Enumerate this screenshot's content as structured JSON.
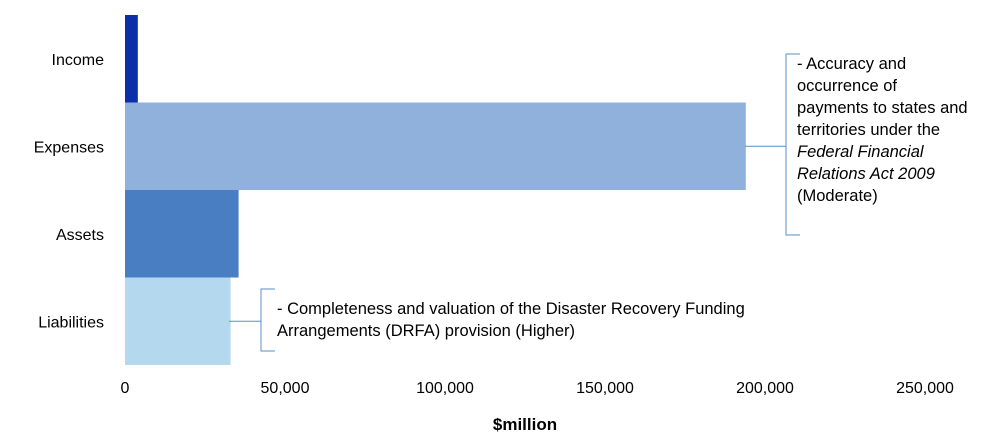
{
  "chart_data": {
    "type": "bar",
    "orientation": "horizontal",
    "categories": [
      "Income",
      "Expenses",
      "Assets",
      "Liabilities"
    ],
    "values": [
      4000,
      194000,
      35500,
      33000
    ],
    "colors": [
      "#0a2fa6",
      "#8fb1dc",
      "#4a7ec2",
      "#b4d9ee"
    ],
    "xlabel": "$million",
    "xlim": [
      0,
      250000
    ],
    "xticks": [
      0,
      50000,
      100000,
      150000,
      200000,
      250000
    ],
    "xtick_labels": [
      "0",
      "50,000",
      "100,000",
      "150,000",
      "200,000",
      "250,000"
    ],
    "grid": false,
    "annotations": [
      {
        "category": "Expenses",
        "parts": [
          {
            "text": "- Accuracy and occurrence of payments to states and territories under the ",
            "italic": false
          },
          {
            "text": "Federal Financial Relations Act 2009",
            "italic": true
          },
          {
            "text": " (Moderate)",
            "italic": false
          }
        ]
      },
      {
        "category": "Liabilities",
        "parts": [
          {
            "text": "- Completeness and valuation of the Disaster Recovery Funding Arrangements (DRFA) provision (Higher)",
            "italic": false
          }
        ]
      }
    ],
    "accent_color": "#5b8fc7"
  }
}
